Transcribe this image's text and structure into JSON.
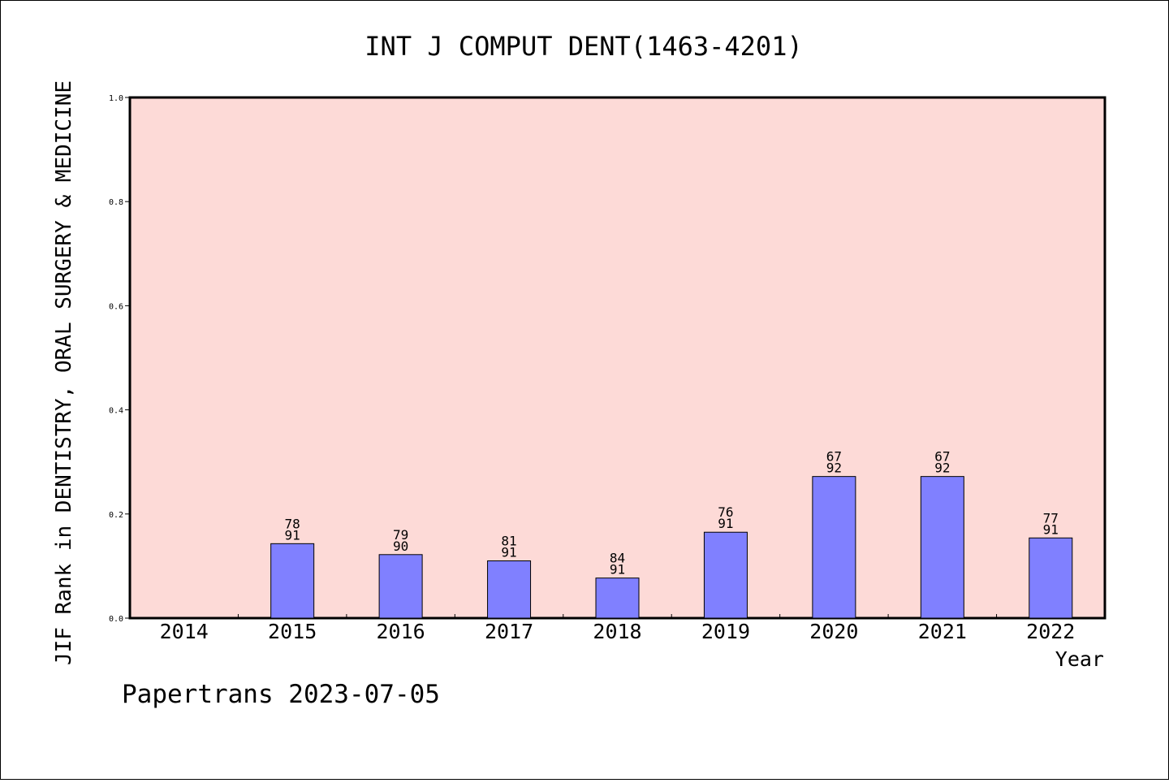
{
  "chart_data": {
    "type": "bar",
    "title": "INT J COMPUT DENT(1463-4201)",
    "ylabel": "JIF Rank in DENTISTRY, ORAL SURGERY & MEDICINE",
    "xlabel": "Year",
    "ylim": [
      0,
      1.0
    ],
    "yticks": [
      "0.0",
      "0.2",
      "0.4",
      "0.6",
      "0.8",
      "1.0"
    ],
    "categories": [
      "2014",
      "2015",
      "2016",
      "2017",
      "2018",
      "2019",
      "2020",
      "2021",
      "2022"
    ],
    "values": [
      null,
      0.143,
      0.122,
      0.11,
      0.077,
      0.165,
      0.272,
      0.272,
      0.154
    ],
    "rank": [
      null,
      "78",
      "79",
      "81",
      "84",
      "76",
      "67",
      "67",
      "77"
    ],
    "total": [
      null,
      "91",
      "90",
      "91",
      "91",
      "91",
      "92",
      "92",
      "91"
    ],
    "grid": false,
    "colors": {
      "plot_bg": "#fddad7",
      "bar": "#8080ff",
      "bar_edge": "#000000"
    }
  },
  "footer": "Papertrans 2023-07-05"
}
